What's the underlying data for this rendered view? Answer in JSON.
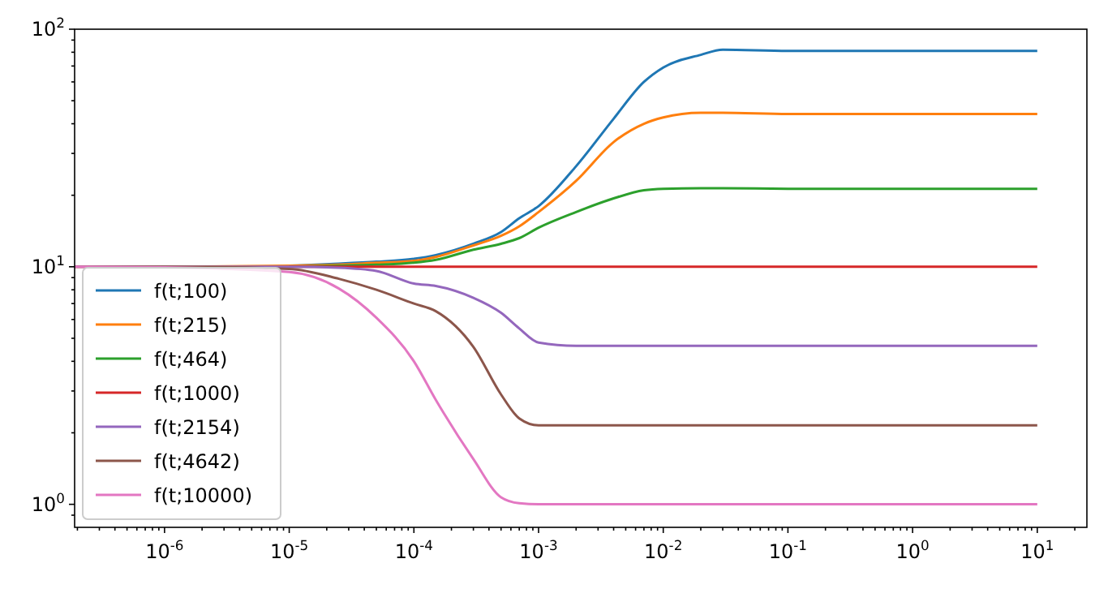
{
  "chart_data": {
    "type": "line",
    "log": "xy",
    "legend": "lower left",
    "grid": false,
    "xlim": [
      1.9e-07,
      25
    ],
    "ylim": [
      0.8,
      100
    ],
    "xticks": [
      {
        "value": 2e-07,
        "label": null
      },
      {
        "value": 3e-07,
        "label": null
      },
      {
        "value": 4e-07,
        "label": null
      },
      {
        "value": 5e-07,
        "label": null
      },
      {
        "value": 6e-07,
        "label": null
      },
      {
        "value": 7e-07,
        "label": null
      },
      {
        "value": 8e-07,
        "label": null
      },
      {
        "value": 9e-07,
        "label": null
      },
      {
        "value": 1e-06,
        "label": "10$^{-6}$"
      },
      {
        "value": 2e-06,
        "label": null
      },
      {
        "value": 3e-06,
        "label": null
      },
      {
        "value": 4e-06,
        "label": null
      },
      {
        "value": 5e-06,
        "label": null
      },
      {
        "value": 6e-06,
        "label": null
      },
      {
        "value": 7e-06,
        "label": null
      },
      {
        "value": 8e-06,
        "label": null
      },
      {
        "value": 9e-06,
        "label": null
      },
      {
        "value": 1e-05,
        "label": "10$^{-5}$"
      },
      {
        "value": 2e-05,
        "label": null
      },
      {
        "value": 3e-05,
        "label": null
      },
      {
        "value": 4e-05,
        "label": null
      },
      {
        "value": 5e-05,
        "label": null
      },
      {
        "value": 6e-05,
        "label": null
      },
      {
        "value": 7e-05,
        "label": null
      },
      {
        "value": 8e-05,
        "label": null
      },
      {
        "value": 9e-05,
        "label": null
      },
      {
        "value": 0.0001,
        "label": "10$^{-4}$"
      },
      {
        "value": 0.0002,
        "label": null
      },
      {
        "value": 0.0003,
        "label": null
      },
      {
        "value": 0.0004,
        "label": null
      },
      {
        "value": 0.0005,
        "label": null
      },
      {
        "value": 0.0006,
        "label": null
      },
      {
        "value": 0.0007,
        "label": null
      },
      {
        "value": 0.0008,
        "label": null
      },
      {
        "value": 0.0009,
        "label": null
      },
      {
        "value": 0.001,
        "label": "10$^{-3}$"
      },
      {
        "value": 0.002,
        "label": null
      },
      {
        "value": 0.003,
        "label": null
      },
      {
        "value": 0.004,
        "label": null
      },
      {
        "value": 0.005,
        "label": null
      },
      {
        "value": 0.006,
        "label": null
      },
      {
        "value": 0.007,
        "label": null
      },
      {
        "value": 0.008,
        "label": null
      },
      {
        "value": 0.009,
        "label": null
      },
      {
        "value": 0.01,
        "label": "10$^{-2}$"
      },
      {
        "value": 0.02,
        "label": null
      },
      {
        "value": 0.03,
        "label": null
      },
      {
        "value": 0.04,
        "label": null
      },
      {
        "value": 0.05,
        "label": null
      },
      {
        "value": 0.06,
        "label": null
      },
      {
        "value": 0.07,
        "label": null
      },
      {
        "value": 0.08,
        "label": null
      },
      {
        "value": 0.09,
        "label": null
      },
      {
        "value": 0.1,
        "label": "10$^{-1}$"
      },
      {
        "value": 0.2,
        "label": null
      },
      {
        "value": 0.3,
        "label": null
      },
      {
        "value": 0.4,
        "label": null
      },
      {
        "value": 0.5,
        "label": null
      },
      {
        "value": 0.6,
        "label": null
      },
      {
        "value": 0.7,
        "label": null
      },
      {
        "value": 0.8,
        "label": null
      },
      {
        "value": 0.9,
        "label": null
      },
      {
        "value": 1,
        "label": "10$^{0}$"
      },
      {
        "value": 2,
        "label": null
      },
      {
        "value": 3,
        "label": null
      },
      {
        "value": 4,
        "label": null
      },
      {
        "value": 5,
        "label": null
      },
      {
        "value": 6,
        "label": null
      },
      {
        "value": 7,
        "label": null
      },
      {
        "value": 8,
        "label": null
      },
      {
        "value": 9,
        "label": null
      },
      {
        "value": 10,
        "label": "10$^{1}$"
      },
      {
        "value": 20,
        "label": null
      }
    ],
    "yticks": [
      {
        "value": 0.9,
        "label": null
      },
      {
        "value": 1,
        "label": "10$^{0}$"
      },
      {
        "value": 2,
        "label": null
      },
      {
        "value": 3,
        "label": null
      },
      {
        "value": 4,
        "label": null
      },
      {
        "value": 5,
        "label": null
      },
      {
        "value": 6,
        "label": null
      },
      {
        "value": 7,
        "label": null
      },
      {
        "value": 8,
        "label": null
      },
      {
        "value": 9,
        "label": null
      },
      {
        "value": 10,
        "label": "10$^{1}$"
      },
      {
        "value": 20,
        "label": null
      },
      {
        "value": 30,
        "label": null
      },
      {
        "value": 40,
        "label": null
      },
      {
        "value": 50,
        "label": null
      },
      {
        "value": 60,
        "label": null
      },
      {
        "value": 70,
        "label": null
      },
      {
        "value": 80,
        "label": null
      },
      {
        "value": 90,
        "label": null
      },
      {
        "value": 100,
        "label": "10$^{2}$"
      }
    ],
    "x": [
      1.9e-07,
      1e-06,
      1e-05,
      2.5e-05,
      5e-05,
      0.0001,
      0.00015,
      0.0003,
      0.0005,
      0.0007,
      0.001,
      0.002,
      0.004,
      0.007,
      0.01,
      0.02,
      0.03,
      0.1,
      1,
      10
    ],
    "series": [
      {
        "name": "f(t;100)",
        "color": "#1f77b4",
        "values": [
          null,
          null,
          10.1,
          10.3,
          10.5,
          10.8,
          11.2,
          12.5,
          14,
          16,
          18,
          26.5,
          42,
          60,
          69,
          78,
          82,
          81,
          81,
          81
        ]
      },
      {
        "name": "f(t;215)",
        "color": "#ff7f0e",
        "values": [
          10,
          10,
          10.1,
          10.2,
          10.4,
          10.6,
          11,
          12.3,
          13.5,
          14.8,
          17,
          23,
          33.5,
          40,
          42.5,
          44.5,
          44.5,
          44,
          44,
          44
        ]
      },
      {
        "name": "f(t;464)",
        "color": "#2ca02c",
        "values": [
          null,
          null,
          10,
          10.1,
          10.2,
          10.4,
          10.7,
          11.8,
          12.5,
          13.2,
          14.6,
          17,
          19.4,
          21,
          21.3,
          21.4,
          21.4,
          21.3,
          21.3,
          21.3
        ]
      },
      {
        "name": "f(t;1000)",
        "color": "#d62728",
        "values": [
          null,
          null,
          10,
          10,
          10,
          10,
          10,
          10,
          10,
          10,
          10,
          10,
          10,
          10,
          10,
          10,
          10,
          10,
          10,
          10
        ]
      },
      {
        "name": "f(t;2154)",
        "color": "#9467bd",
        "values": [
          10,
          10,
          10,
          9.9,
          9.6,
          8.5,
          8.3,
          7.4,
          6.4,
          5.5,
          4.8,
          4.65,
          4.65,
          4.65,
          4.65,
          4.65,
          4.65,
          4.65,
          4.65,
          4.65
        ]
      },
      {
        "name": "f(t;4642)",
        "color": "#8c564b",
        "values": [
          10,
          10,
          9.8,
          8.9,
          8,
          7,
          6.5,
          4.6,
          2.9,
          2.3,
          2.15,
          2.15,
          2.15,
          2.15,
          2.15,
          2.15,
          2.15,
          2.15,
          2.15,
          2.15
        ]
      },
      {
        "name": "f(t;10000)",
        "color": "#e377c2",
        "values": [
          10,
          9.95,
          9.5,
          8.1,
          6.1,
          4,
          2.75,
          1.55,
          1.07,
          1.01,
          1,
          1,
          1,
          1,
          1,
          1,
          1,
          1,
          1,
          1
        ]
      }
    ]
  }
}
